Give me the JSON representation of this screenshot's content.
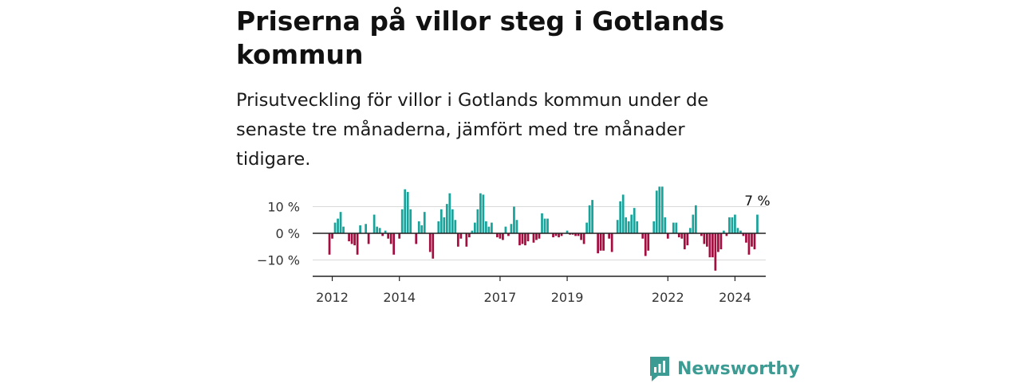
{
  "header": {
    "title": "Priserna på villor steg i Gotlands kommun",
    "subtitle": "Prisutveckling för villor i Gotlands kommun under de senaste tre månaderna, jämfört med tre månader tidigare."
  },
  "brand": {
    "name": "Newsworthy",
    "icon": "newsworthy-logo-icon",
    "color": "#3c9c94"
  },
  "colors": {
    "positive": "#1aa39a",
    "negative": "#a30d3f",
    "axis": "#222222",
    "grid": "#d9d9d9"
  },
  "chart_data": {
    "type": "bar",
    "x_range": [
      "2011-06",
      "2024-12"
    ],
    "x_ticks": [
      {
        "label": "2012",
        "date": "2012-01"
      },
      {
        "label": "2014",
        "date": "2014-01"
      },
      {
        "label": "2017",
        "date": "2017-01"
      },
      {
        "label": "2019",
        "date": "2019-01"
      },
      {
        "label": "2022",
        "date": "2022-01"
      },
      {
        "label": "2024",
        "date": "2024-01"
      }
    ],
    "y_ticks": [
      {
        "value": 10,
        "label": "10 %"
      },
      {
        "value": 0,
        "label": "0 %"
      },
      {
        "value": -10,
        "label": "−10 %"
      }
    ],
    "ylim": [
      -16,
      18
    ],
    "last_value_label": "7 %",
    "series": [
      {
        "values": [
          [
            "2011-12",
            -8
          ],
          [
            "2012-01",
            -2
          ],
          [
            "2012-02",
            4
          ],
          [
            "2012-03",
            5.5
          ],
          [
            "2012-04",
            8
          ],
          [
            "2012-05",
            2.5
          ],
          [
            "2012-06",
            0
          ],
          [
            "2012-07",
            -3
          ],
          [
            "2012-08",
            -4
          ],
          [
            "2012-09",
            -4.5
          ],
          [
            "2012-10",
            -8
          ],
          [
            "2012-11",
            3
          ],
          [
            "2012-12",
            0
          ],
          [
            "2013-01",
            3.5
          ],
          [
            "2013-02",
            -4
          ],
          [
            "2013-03",
            0
          ],
          [
            "2013-04",
            7
          ],
          [
            "2013-05",
            2.5
          ],
          [
            "2013-06",
            2
          ],
          [
            "2013-07",
            -1
          ],
          [
            "2013-08",
            1
          ],
          [
            "2013-09",
            -2
          ],
          [
            "2013-10",
            -4
          ],
          [
            "2013-11",
            -8
          ],
          [
            "2013-12",
            0
          ],
          [
            "2014-01",
            -2
          ],
          [
            "2014-02",
            9
          ],
          [
            "2014-03",
            16.5
          ],
          [
            "2014-04",
            15.5
          ],
          [
            "2014-05",
            9
          ],
          [
            "2014-06",
            0
          ],
          [
            "2014-07",
            -4
          ],
          [
            "2014-08",
            4.5
          ],
          [
            "2014-09",
            3
          ],
          [
            "2014-10",
            8
          ],
          [
            "2014-11",
            0
          ],
          [
            "2014-12",
            -7
          ],
          [
            "2015-01",
            -9.5
          ],
          [
            "2015-02",
            0
          ],
          [
            "2015-03",
            4.5
          ],
          [
            "2015-04",
            9
          ],
          [
            "2015-05",
            6
          ],
          [
            "2015-06",
            11
          ],
          [
            "2015-07",
            15
          ],
          [
            "2015-08",
            9
          ],
          [
            "2015-09",
            5
          ],
          [
            "2015-10",
            -5
          ],
          [
            "2015-11",
            -2
          ],
          [
            "2015-12",
            0
          ],
          [
            "2016-01",
            -5
          ],
          [
            "2016-02",
            -1.5
          ],
          [
            "2016-03",
            1
          ],
          [
            "2016-04",
            4
          ],
          [
            "2016-05",
            9
          ],
          [
            "2016-06",
            15
          ],
          [
            "2016-07",
            14.5
          ],
          [
            "2016-08",
            4.5
          ],
          [
            "2016-09",
            2.5
          ],
          [
            "2016-10",
            4
          ],
          [
            "2016-11",
            0
          ],
          [
            "2016-12",
            -1.5
          ],
          [
            "2017-01",
            -2
          ],
          [
            "2017-02",
            -2.5
          ],
          [
            "2017-03",
            2.5
          ],
          [
            "2017-04",
            -1
          ],
          [
            "2017-05",
            3.5
          ],
          [
            "2017-06",
            10
          ],
          [
            "2017-07",
            5
          ],
          [
            "2017-08",
            -4.5
          ],
          [
            "2017-09",
            -4
          ],
          [
            "2017-10",
            -4.5
          ],
          [
            "2017-11",
            -3
          ],
          [
            "2017-12",
            0
          ],
          [
            "2018-01",
            -3.5
          ],
          [
            "2018-02",
            -2.5
          ],
          [
            "2018-03",
            -2
          ],
          [
            "2018-04",
            7.5
          ],
          [
            "2018-05",
            5.5
          ],
          [
            "2018-06",
            5.5
          ],
          [
            "2018-07",
            0
          ],
          [
            "2018-08",
            -1.5
          ],
          [
            "2018-09",
            -1
          ],
          [
            "2018-10",
            -1.5
          ],
          [
            "2018-11",
            -1
          ],
          [
            "2018-12",
            0
          ],
          [
            "2019-01",
            1
          ],
          [
            "2019-02",
            -0.5
          ],
          [
            "2019-03",
            -0.5
          ],
          [
            "2019-04",
            -1
          ],
          [
            "2019-05",
            -1
          ],
          [
            "2019-06",
            -2.5
          ],
          [
            "2019-07",
            -4
          ],
          [
            "2019-08",
            4
          ],
          [
            "2019-09",
            10.5
          ],
          [
            "2019-10",
            12.5
          ],
          [
            "2019-11",
            0
          ],
          [
            "2019-12",
            -7.5
          ],
          [
            "2020-01",
            -6.5
          ],
          [
            "2020-02",
            -6.5
          ],
          [
            "2020-03",
            0
          ],
          [
            "2020-04",
            -2
          ],
          [
            "2020-05",
            -7
          ],
          [
            "2020-06",
            0
          ],
          [
            "2020-07",
            5
          ],
          [
            "2020-08",
            12
          ],
          [
            "2020-09",
            14.5
          ],
          [
            "2020-10",
            6
          ],
          [
            "2020-11",
            4.5
          ],
          [
            "2020-12",
            7
          ],
          [
            "2021-01",
            9.5
          ],
          [
            "2021-02",
            4.5
          ],
          [
            "2021-03",
            0
          ],
          [
            "2021-04",
            -2
          ],
          [
            "2021-05",
            -8.5
          ],
          [
            "2021-06",
            -6.5
          ],
          [
            "2021-07",
            0
          ],
          [
            "2021-08",
            4.5
          ],
          [
            "2021-09",
            16
          ],
          [
            "2021-10",
            17.5
          ],
          [
            "2021-11",
            17.5
          ],
          [
            "2021-12",
            6
          ],
          [
            "2022-01",
            -2
          ],
          [
            "2022-02",
            0
          ],
          [
            "2022-03",
            4
          ],
          [
            "2022-04",
            4
          ],
          [
            "2022-05",
            -1.5
          ],
          [
            "2022-06",
            -2
          ],
          [
            "2022-07",
            -6
          ],
          [
            "2022-08",
            -4.5
          ],
          [
            "2022-09",
            2
          ],
          [
            "2022-10",
            7
          ],
          [
            "2022-11",
            10.5
          ],
          [
            "2022-12",
            0
          ],
          [
            "2023-01",
            -1
          ],
          [
            "2023-02",
            -4
          ],
          [
            "2023-03",
            -5
          ],
          [
            "2023-04",
            -9
          ],
          [
            "2023-05",
            -9
          ],
          [
            "2023-06",
            -14
          ],
          [
            "2023-07",
            -7
          ],
          [
            "2023-08",
            -6
          ],
          [
            "2023-09",
            1
          ],
          [
            "2023-10",
            -1
          ],
          [
            "2023-11",
            6
          ],
          [
            "2023-12",
            6
          ],
          [
            "2024-01",
            7
          ],
          [
            "2024-02",
            2
          ],
          [
            "2024-03",
            1
          ],
          [
            "2024-04",
            -1
          ],
          [
            "2024-05",
            -3.5
          ],
          [
            "2024-06",
            -8
          ],
          [
            "2024-07",
            -5
          ],
          [
            "2024-08",
            -6
          ],
          [
            "2024-09",
            7
          ]
        ]
      }
    ]
  }
}
